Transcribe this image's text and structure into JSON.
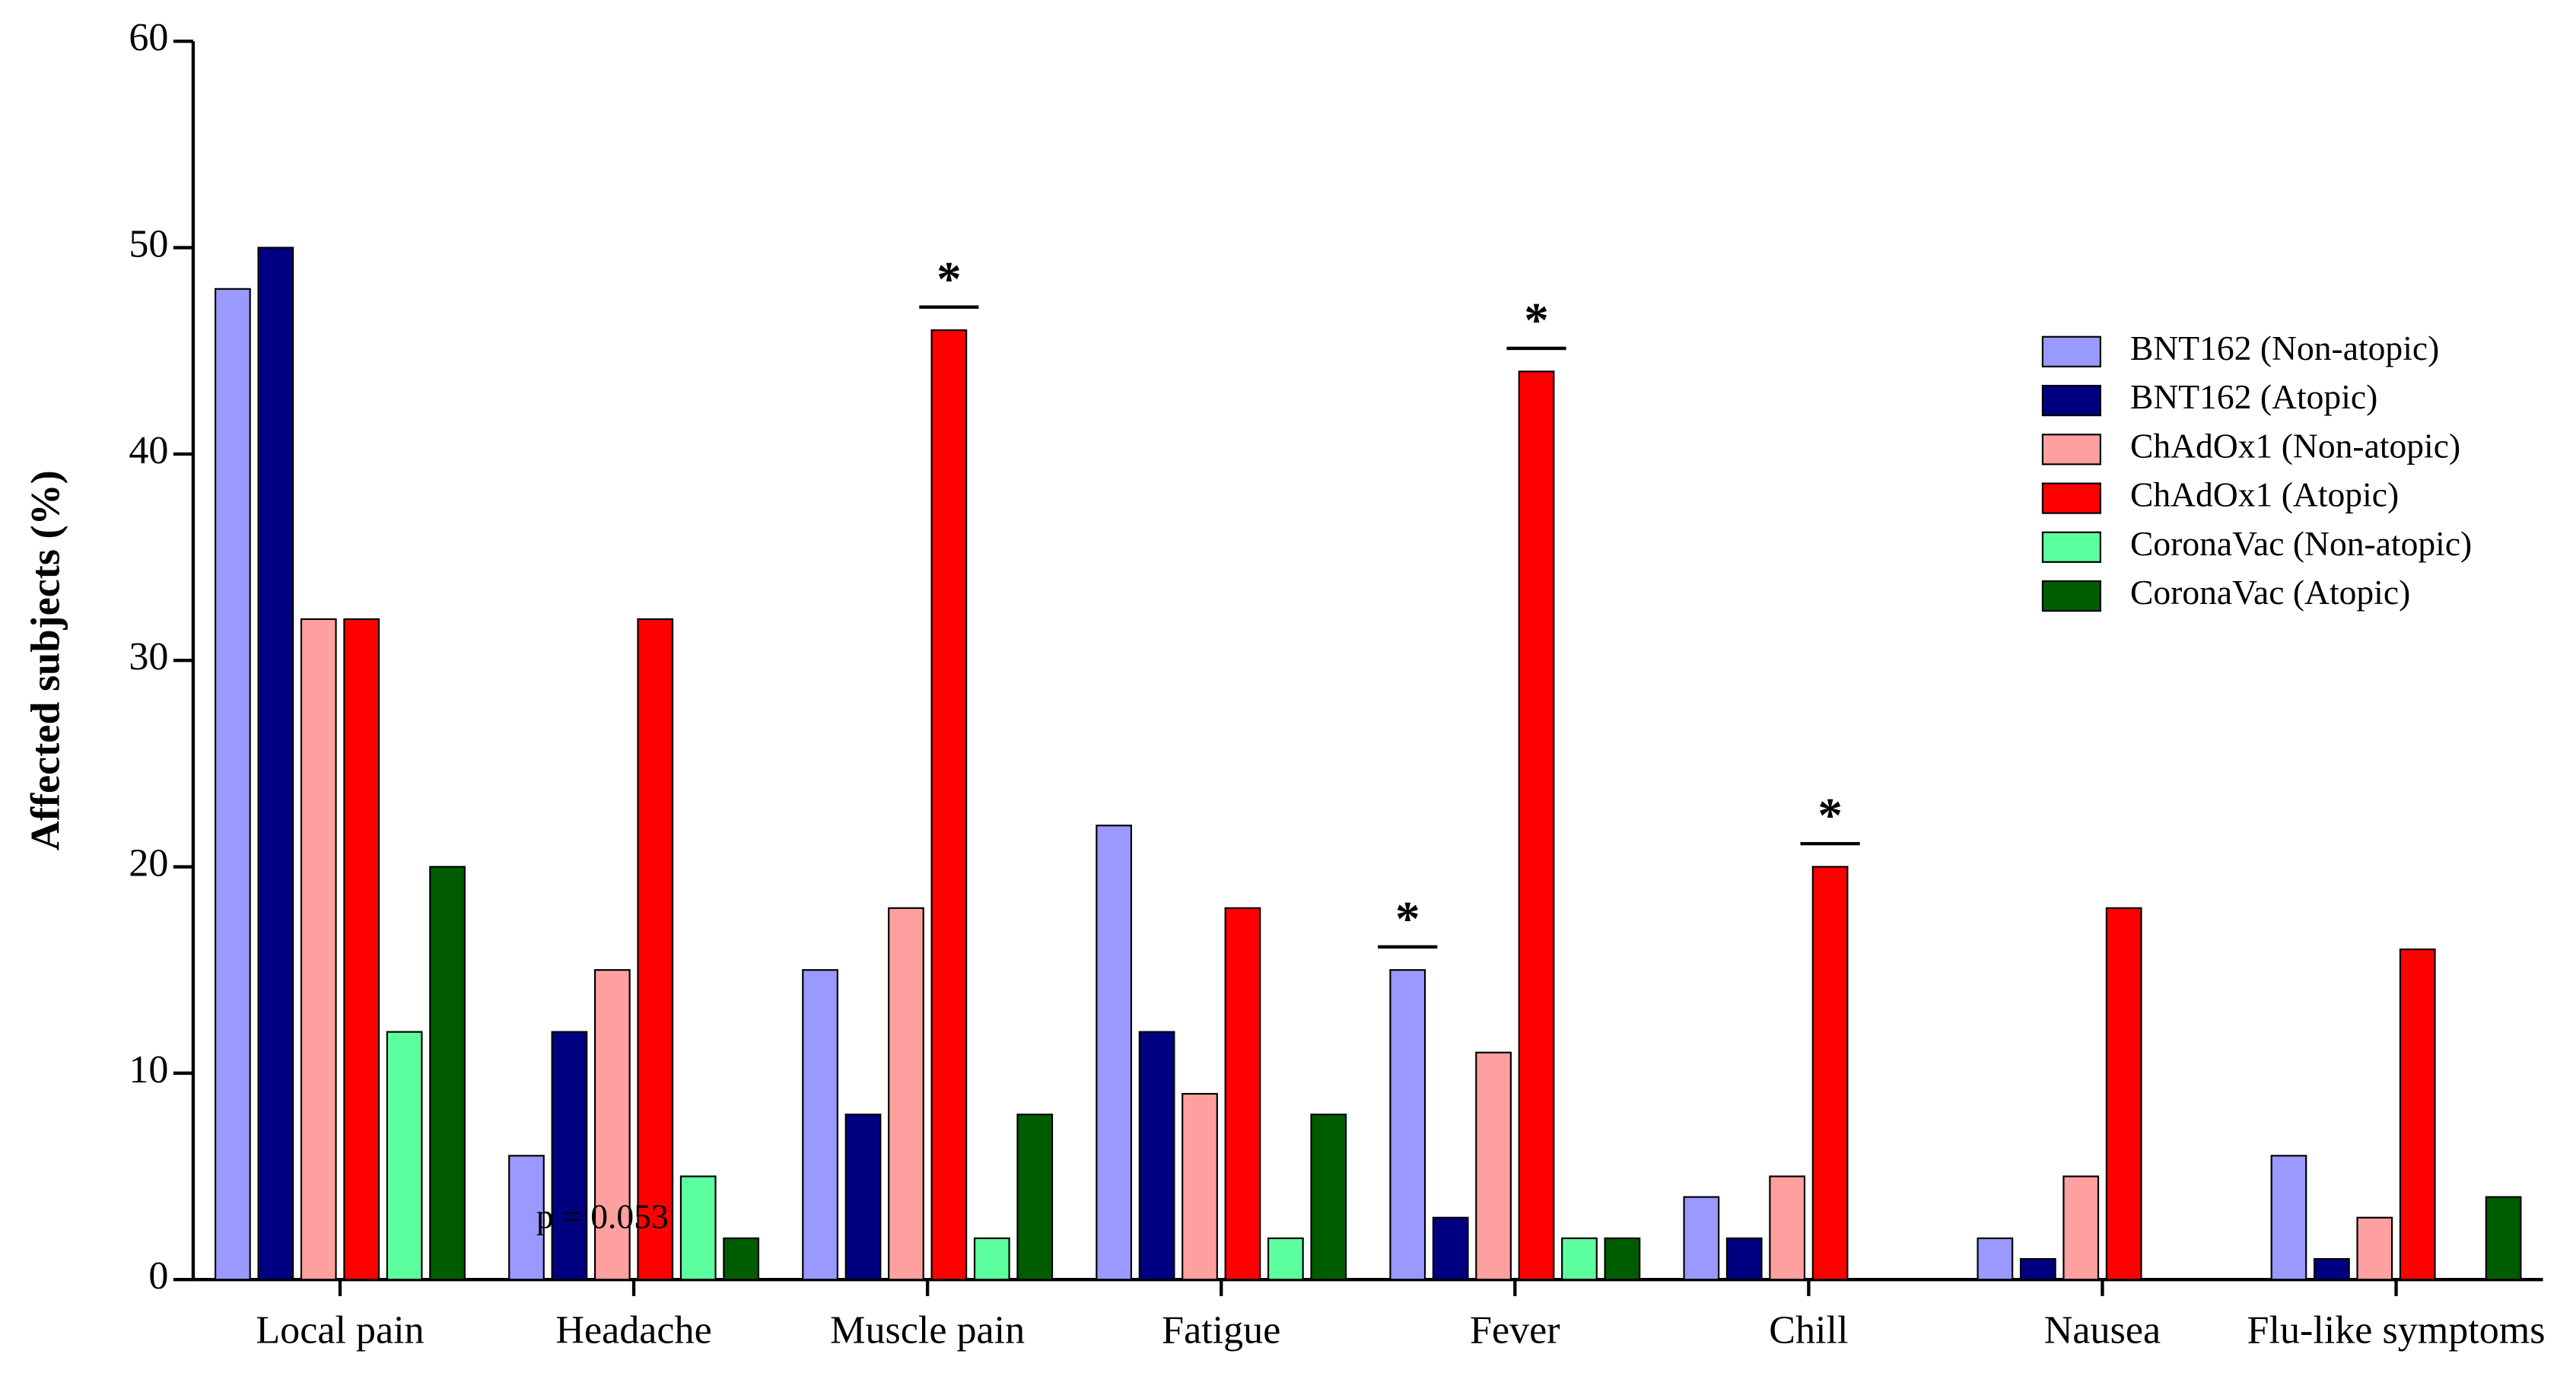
{
  "chart_data": {
    "type": "bar",
    "y_label": "Affected subjects (%)",
    "categories": [
      "Local pain",
      "Headache",
      "Muscle pain",
      "Fatigue",
      "Fever",
      "Chill",
      "Nausea",
      "Flu-like symptoms"
    ],
    "series": [
      {
        "name": "BNT162 (Non-atopic)",
        "color": "#9999ff",
        "values": [
          48,
          6,
          15,
          22,
          15,
          4,
          2,
          6
        ]
      },
      {
        "name": "BNT162 (Atopic)",
        "color": "#000080",
        "values": [
          50,
          12,
          8,
          12,
          3,
          2,
          1,
          1
        ]
      },
      {
        "name": "ChAdOx1 (Non-atopic)",
        "color": "#ffa0a0",
        "values": [
          32,
          15,
          18,
          9,
          11,
          5,
          5,
          3
        ]
      },
      {
        "name": "ChAdOx1 (Atopic)",
        "color": "#ff0000",
        "values": [
          32,
          32,
          46,
          18,
          44,
          20,
          18,
          16
        ]
      },
      {
        "name": "CoronaVac (Non-atopic)",
        "color": "#5cff9d",
        "values": [
          12,
          5,
          2,
          2,
          2,
          0,
          0,
          0
        ]
      },
      {
        "name": "CoronaVac (Atopic)",
        "color": "#005c00",
        "values": [
          20,
          2,
          8,
          8,
          2,
          0,
          0,
          4
        ]
      }
    ],
    "ylim": [
      0,
      60
    ],
    "yticks": [
      0,
      10,
      20,
      30,
      40,
      50,
      60
    ],
    "legend": "upper right",
    "annotations": [
      "p = 0.053",
      "*",
      "*",
      "*",
      "*"
    ]
  }
}
